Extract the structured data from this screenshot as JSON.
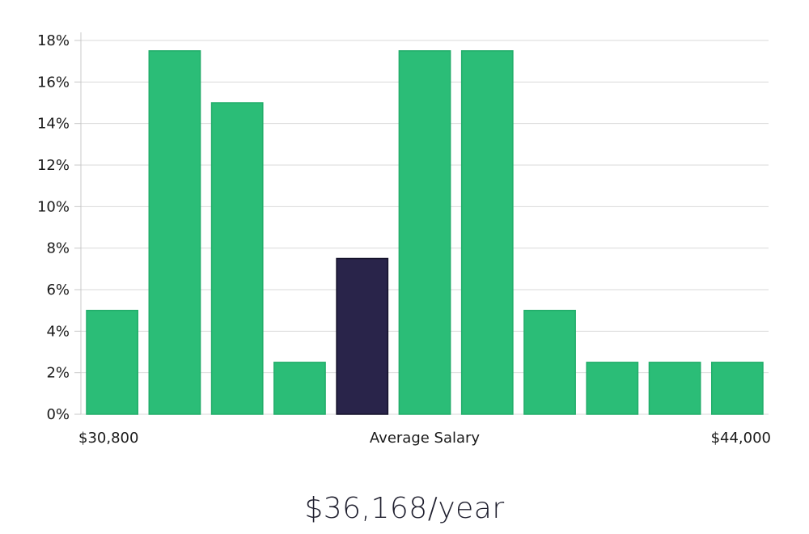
{
  "chart_data": {
    "type": "bar",
    "title": "",
    "xlabel": "Average Salary",
    "ylabel": "",
    "ylim": [
      0,
      18
    ],
    "y_ticks": [
      0,
      2,
      4,
      6,
      8,
      10,
      12,
      14,
      16,
      18
    ],
    "y_tick_suffix": "%",
    "x_range_labels": {
      "start": "$30,800",
      "end": "$44,000"
    },
    "values": [
      5,
      17.5,
      15,
      2.5,
      7.5,
      17.5,
      17.5,
      5,
      2.5,
      2.5,
      2.5
    ],
    "highlight_index": 4,
    "grid": true,
    "colors": {
      "bar": "#2bbd77",
      "bar_stroke": "#22ad6a",
      "highlight": "#29244a",
      "highlight_stroke": "#14122a",
      "grid": "#d9d9d9",
      "axis": "#c8c8c8"
    }
  },
  "summary": {
    "salary_text": "$36,168/year"
  }
}
